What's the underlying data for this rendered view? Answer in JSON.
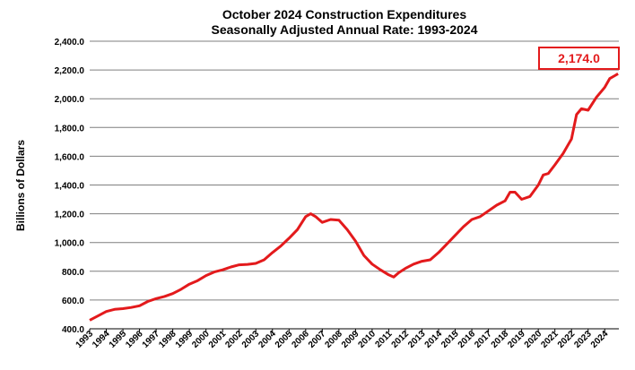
{
  "colors": {
    "series": "#e31a1c",
    "grid": "#7f7f7f",
    "axis": "#000000",
    "callout": "#e31a1c"
  },
  "chart_data": {
    "type": "line",
    "title": "October 2024 Construction Expenditures",
    "subtitle": "Seasonally Adjusted Annual Rate: 1993-2024",
    "xlabel": "",
    "ylabel": "Billions of Dollars",
    "ylim": [
      400,
      2400
    ],
    "yticks": [
      400,
      600,
      800,
      1000,
      1200,
      1400,
      1600,
      1800,
      2000,
      2200,
      2400
    ],
    "ytick_labels": [
      "400.0",
      "600.0",
      "800.0",
      "1,000.0",
      "1,200.0",
      "1,400.0",
      "1,600.0",
      "1,800.0",
      "2,000.0",
      "2,200.0",
      "2,400.0"
    ],
    "xlim": [
      1993,
      2024.85
    ],
    "xtick_labels": [
      "1993",
      "1994",
      "1995",
      "1996",
      "1997",
      "1998",
      "1999",
      "2000",
      "2001",
      "2002",
      "2003",
      "2004",
      "2005",
      "2006",
      "2007",
      "2008",
      "2009",
      "2010",
      "2011",
      "2012",
      "2013",
      "2014",
      "2015",
      "2016",
      "2017",
      "2018",
      "2019",
      "2020",
      "2021",
      "2022",
      "2023",
      "2024"
    ],
    "grid": true,
    "annotation": "2,174.0",
    "series": [
      {
        "name": "Construction Expenditures",
        "x": [
          1993,
          1993.5,
          1994,
          1994.5,
          1995,
          1995.5,
          1996,
          1996.5,
          1997,
          1997.5,
          1998,
          1998.5,
          1999,
          1999.5,
          2000,
          2000.5,
          2001,
          2001.5,
          2002,
          2002.5,
          2003,
          2003.5,
          2004,
          2004.5,
          2005,
          2005.5,
          2006,
          2006.3,
          2006.6,
          2007,
          2007.5,
          2008,
          2008.5,
          2009,
          2009.5,
          2010,
          2010.5,
          2011,
          2011.3,
          2011.6,
          2012,
          2012.5,
          2013,
          2013.5,
          2014,
          2014.5,
          2015,
          2015.5,
          2016,
          2016.5,
          2017,
          2017.5,
          2018,
          2018.3,
          2018.6,
          2019,
          2019.5,
          2020,
          2020.3,
          2020.6,
          2021,
          2021.5,
          2022,
          2022.3,
          2022.6,
          2023,
          2023.5,
          2024,
          2024.3,
          2024.6,
          2024.8
        ],
        "values": [
          460,
          490,
          520,
          535,
          540,
          548,
          560,
          590,
          610,
          625,
          645,
          675,
          710,
          735,
          770,
          795,
          810,
          830,
          845,
          848,
          855,
          880,
          930,
          975,
          1030,
          1090,
          1180,
          1200,
          1180,
          1140,
          1160,
          1155,
          1090,
          1010,
          910,
          850,
          810,
          775,
          760,
          790,
          820,
          850,
          870,
          880,
          930,
          990,
          1050,
          1110,
          1160,
          1180,
          1220,
          1260,
          1290,
          1350,
          1350,
          1300,
          1320,
          1400,
          1470,
          1480,
          1540,
          1620,
          1720,
          1890,
          1930,
          1920,
          2010,
          2080,
          2140,
          2160,
          2174
        ]
      }
    ]
  }
}
